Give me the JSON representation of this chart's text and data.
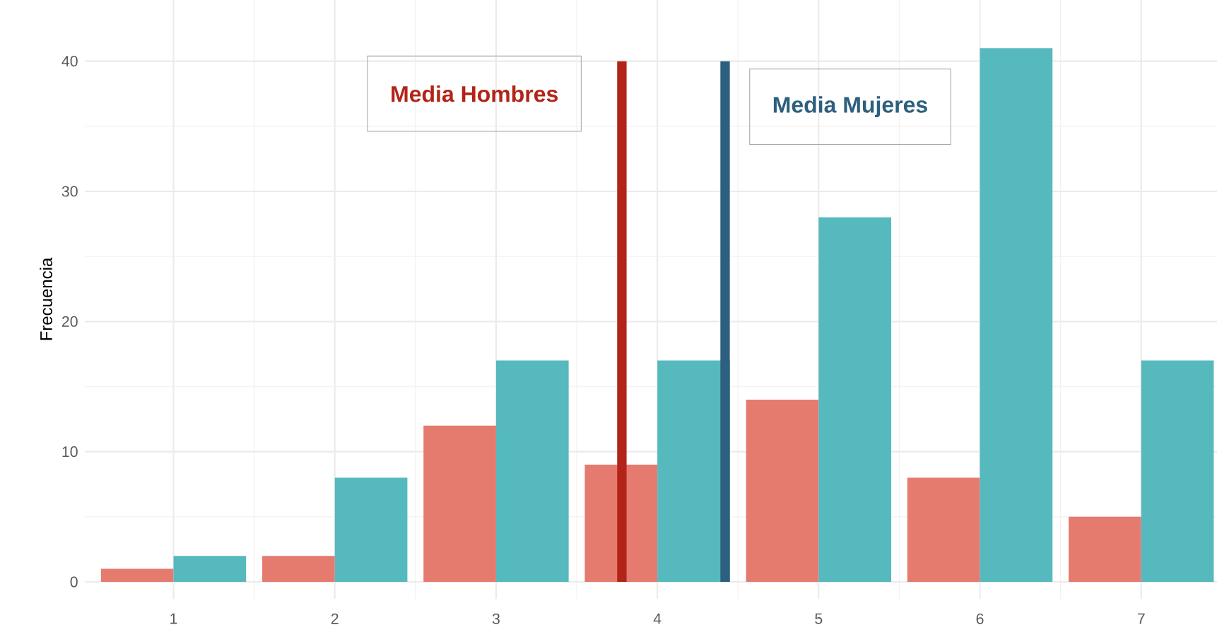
{
  "chart_data": {
    "type": "bar",
    "ylabel": "Frecuencia",
    "x": [
      1,
      2,
      3,
      4,
      5,
      6,
      7
    ],
    "series": [
      {
        "color": "#e57b6e",
        "values": [
          1,
          2,
          12,
          9,
          14,
          8,
          5
        ]
      },
      {
        "color": "#56b9be",
        "values": [
          2,
          8,
          17,
          17,
          28,
          41,
          17
        ]
      }
    ],
    "xlim": [
      0.45,
      7.47
    ],
    "ylim": [
      -1.3,
      44.7
    ],
    "xticks": [
      1,
      2,
      3,
      4,
      5,
      6,
      7
    ],
    "yticks": [
      0,
      10,
      20,
      30,
      40
    ],
    "grid": true,
    "ref_lines": [
      {
        "axis": "x",
        "value": 3.78,
        "label": "Media Hombres",
        "color": "#b22418"
      },
      {
        "axis": "x",
        "value": 4.42,
        "label": "Media Mujeres",
        "color": "#2d5f7e"
      }
    ]
  }
}
